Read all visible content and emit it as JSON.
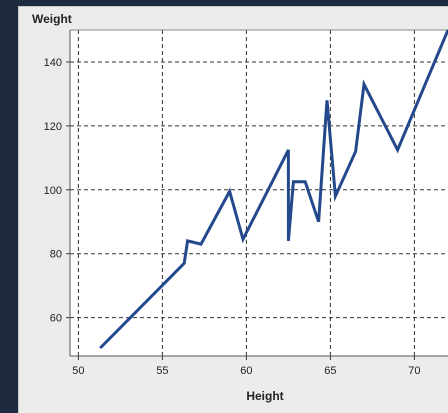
{
  "chart_data": {
    "type": "line",
    "xlabel": "Height",
    "ylabel": "Weight",
    "xlim": [
      49.5,
      72
    ],
    "ylim": [
      48,
      150
    ],
    "xticks": [
      50,
      55,
      60,
      65,
      70
    ],
    "yticks": [
      60,
      80,
      100,
      120,
      140
    ],
    "grid": true,
    "grid_style": "dashed",
    "line_color": "#24488c",
    "series": [
      {
        "x": [
          51.3,
          56.3,
          56.5,
          57.3,
          59.0,
          59.8,
          62.5,
          62.5,
          62.8,
          63.5,
          64.3,
          64.8,
          65.3,
          66.5,
          67.0,
          69.0,
          72.0
        ],
        "y": [
          50.5,
          77.0,
          84.0,
          83.0,
          99.5,
          84.5,
          112.5,
          84.0,
          102.5,
          102.5,
          90.0,
          128.0,
          98.0,
          112.0,
          133.0,
          112.5,
          150.0
        ]
      }
    ]
  }
}
